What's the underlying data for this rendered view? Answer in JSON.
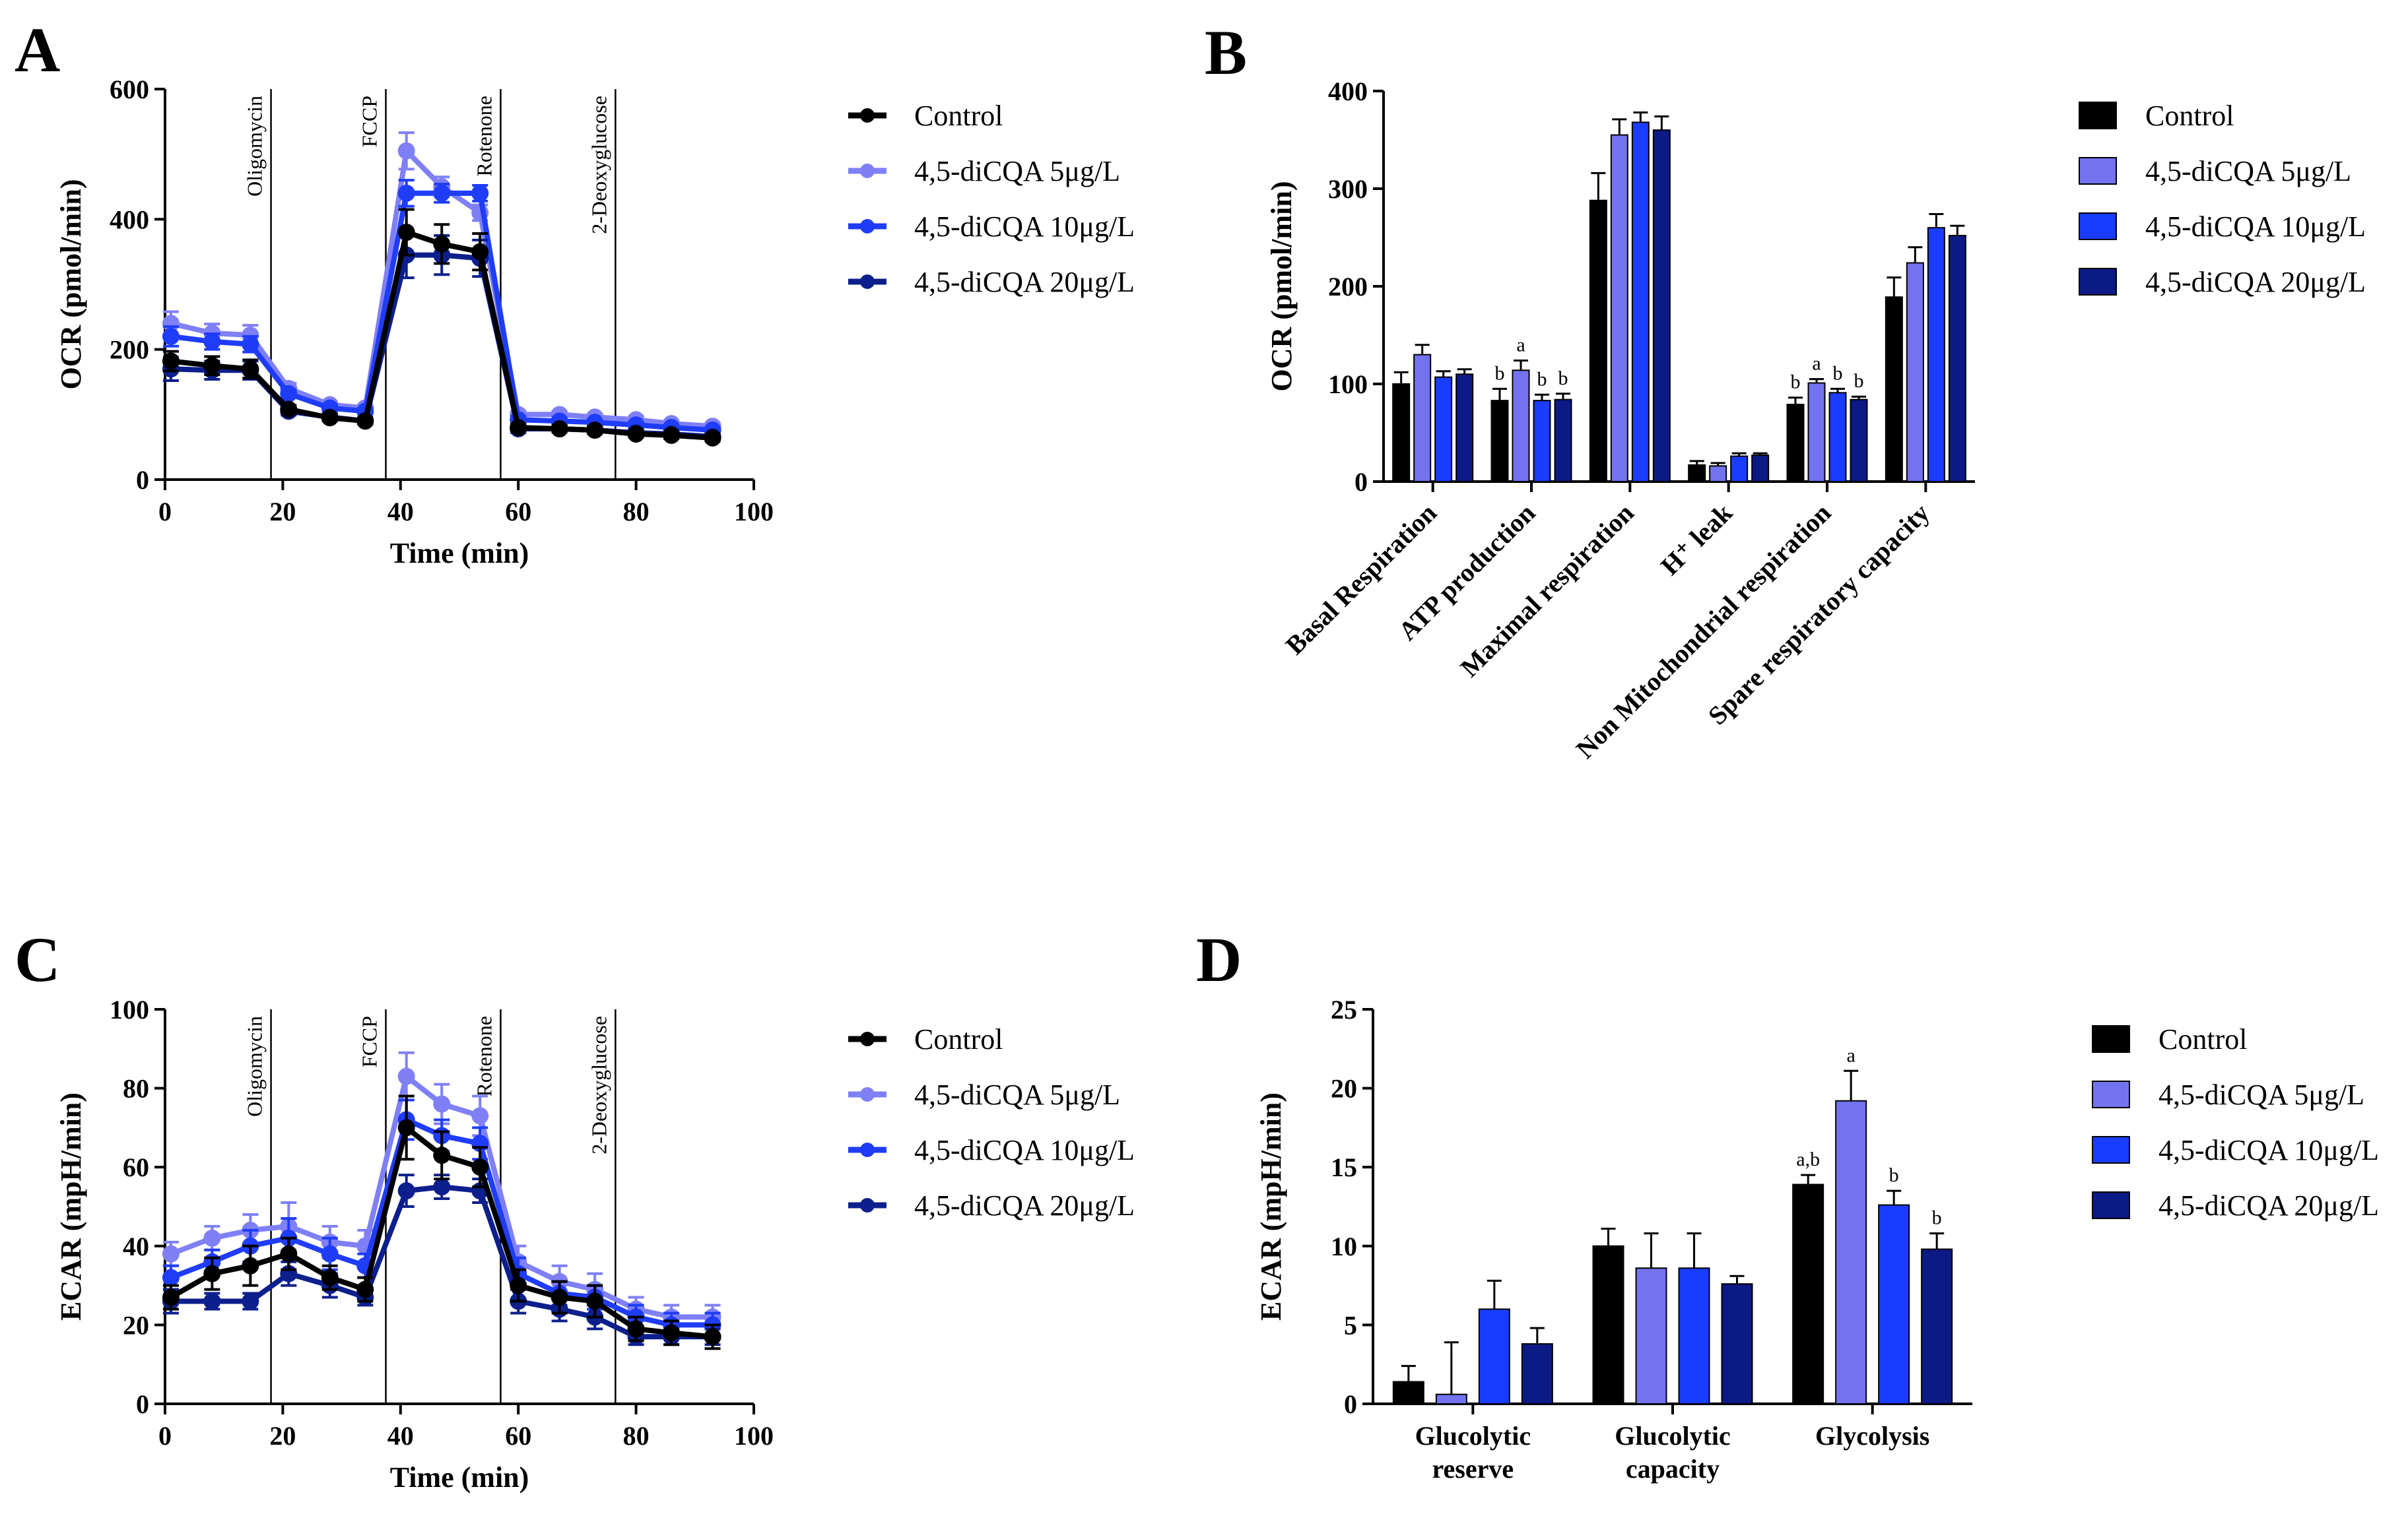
{
  "colors": {
    "Control": "#000000",
    "4,5-diCQA 5μg/L": "#7373f0",
    "4,5-diCQA 10μg/L": "#1a3cff",
    "4,5-diCQA 20μg/L": "#0c1a86",
    "line_5": "#7f80f5",
    "line_10": "#1f3df7",
    "line_20": "#0d1f8c"
  },
  "chart_data": [
    {
      "panel": "A",
      "type": "line",
      "xlabel": "Time (min)",
      "ylabel": "OCR (pmol/min)",
      "xlim": [
        0,
        100
      ],
      "ylim": [
        0,
        600
      ],
      "xticks": [
        0,
        20,
        40,
        60,
        80,
        100
      ],
      "yticks": [
        0,
        200,
        400,
        600
      ],
      "injections": [
        {
          "x": 18,
          "label": "Oligomycin"
        },
        {
          "x": 37.5,
          "label": "FCCP"
        },
        {
          "x": 57,
          "label": "Rotenone"
        },
        {
          "x": 76.5,
          "label": "2-Deoxyglucose"
        }
      ],
      "x": [
        1,
        8,
        14.5,
        21,
        28,
        34,
        41,
        47,
        53.5,
        60,
        67,
        73,
        80,
        86,
        93
      ],
      "series": [
        {
          "name": "4,5-diCQA 5μg/L",
          "values": [
            240,
            225,
            222,
            140,
            115,
            110,
            505,
            450,
            410,
            100,
            100,
            96,
            92,
            86,
            82
          ],
          "errors": [
            18,
            14,
            15,
            8,
            5,
            5,
            28,
            15,
            12,
            5,
            5,
            5,
            5,
            5,
            5
          ]
        },
        {
          "name": "4,5-diCQA 10μg/L",
          "values": [
            220,
            212,
            208,
            132,
            110,
            105,
            440,
            440,
            440,
            92,
            90,
            88,
            84,
            80,
            76
          ],
          "errors": [
            15,
            12,
            12,
            6,
            5,
            5,
            20,
            14,
            12,
            5,
            5,
            4,
            4,
            4,
            4
          ]
        },
        {
          "name": "4,5-diCQA 20μg/L",
          "values": [
            170,
            168,
            168,
            105,
            96,
            90,
            345,
            345,
            340,
            78,
            78,
            76,
            72,
            70,
            66
          ],
          "errors": [
            18,
            14,
            14,
            6,
            5,
            5,
            35,
            30,
            28,
            6,
            5,
            5,
            5,
            5,
            5
          ]
        },
        {
          "name": "Control",
          "values": [
            182,
            175,
            170,
            108,
            95,
            90,
            380,
            362,
            350,
            80,
            78,
            76,
            70,
            68,
            64
          ],
          "errors": [
            15,
            14,
            14,
            6,
            5,
            5,
            35,
            30,
            28,
            5,
            5,
            5,
            5,
            5,
            5
          ]
        }
      ]
    },
    {
      "panel": "B",
      "type": "bar",
      "ylabel": "OCR (pmol/min)",
      "ylim": [
        0,
        400
      ],
      "yticks": [
        0,
        100,
        200,
        300,
        400
      ],
      "categories": [
        "Basal Respiration",
        "ATP production",
        "Maximal respiration",
        "H⁺ leak",
        "Non Mitochondrial respiration",
        "Spare respiratory capacity"
      ],
      "series": [
        {
          "name": "Control",
          "values": [
            100,
            83,
            288,
            17,
            79,
            189
          ],
          "errors": [
            12,
            12,
            28,
            4,
            7,
            20
          ],
          "labels": [
            "",
            "b",
            "",
            "",
            "b",
            ""
          ]
        },
        {
          "name": "4,5-diCQA 5μg/L",
          "values": [
            130,
            114,
            355,
            16,
            101,
            224
          ],
          "errors": [
            10,
            10,
            16,
            3,
            4,
            16
          ],
          "labels": [
            "",
            "a",
            "",
            "",
            "a",
            ""
          ]
        },
        {
          "name": "4,5-diCQA 10μg/L",
          "values": [
            107,
            83,
            368,
            26,
            91,
            260
          ],
          "errors": [
            6,
            6,
            10,
            3,
            4,
            14
          ],
          "labels": [
            "",
            "b",
            "",
            "",
            "b",
            ""
          ]
        },
        {
          "name": "4,5-diCQA 20μg/L",
          "values": [
            110,
            84,
            360,
            27,
            84,
            252
          ],
          "errors": [
            5,
            6,
            14,
            2,
            3,
            10
          ],
          "labels": [
            "",
            "b",
            "",
            "",
            "b",
            ""
          ]
        }
      ]
    },
    {
      "panel": "C",
      "type": "line",
      "xlabel": "Time (min)",
      "ylabel": "ECAR (mpH/min)",
      "xlim": [
        0,
        100
      ],
      "ylim": [
        0,
        100
      ],
      "xticks": [
        0,
        20,
        40,
        60,
        80,
        100
      ],
      "yticks": [
        0,
        20,
        40,
        60,
        80,
        100
      ],
      "injections": [
        {
          "x": 18,
          "label": "Oligomycin"
        },
        {
          "x": 37.5,
          "label": "FCCP"
        },
        {
          "x": 57,
          "label": "Rotenone"
        },
        {
          "x": 76.5,
          "label": "2-Deoxyglucose"
        }
      ],
      "x": [
        1,
        8,
        14.5,
        21,
        28,
        34,
        41,
        47,
        53.5,
        60,
        67,
        73,
        80,
        86,
        93
      ],
      "series": [
        {
          "name": "4,5-diCQA 5μg/L",
          "values": [
            38,
            42,
            44,
            45,
            41,
            40,
            83,
            76,
            73,
            36,
            31,
            29,
            24,
            22,
            22
          ],
          "errors": [
            3,
            3,
            4,
            6,
            4,
            4,
            6,
            5,
            5,
            4,
            4,
            4,
            3,
            3,
            3
          ]
        },
        {
          "name": "4,5-diCQA 10μg/L",
          "values": [
            32,
            36,
            40,
            42,
            38,
            35,
            72,
            68,
            66,
            33,
            28,
            27,
            22,
            20,
            20
          ],
          "errors": [
            3,
            3,
            4,
            5,
            4,
            3,
            5,
            4,
            4,
            4,
            3,
            3,
            3,
            3,
            3
          ]
        },
        {
          "name": "4,5-diCQA 20μg/L",
          "values": [
            26,
            26,
            26,
            33,
            30,
            27,
            54,
            55,
            54,
            26,
            24,
            22,
            17,
            17,
            17
          ],
          "errors": [
            3,
            2,
            2,
            3,
            3,
            2,
            4,
            3,
            3,
            3,
            3,
            3,
            2,
            2,
            2
          ]
        },
        {
          "name": "Control",
          "values": [
            27,
            33,
            35,
            38,
            32,
            29,
            70,
            63,
            60,
            30,
            27,
            26,
            19,
            18,
            17
          ],
          "errors": [
            3,
            4,
            5,
            4,
            3,
            3,
            8,
            6,
            5,
            4,
            4,
            4,
            3,
            3,
            3
          ]
        }
      ]
    },
    {
      "panel": "D",
      "type": "bar",
      "ylabel": "ECAR (mpH/min)",
      "ylim": [
        0,
        25
      ],
      "yticks": [
        0,
        5,
        10,
        15,
        20,
        25
      ],
      "categories": [
        "Glucolytic reserve",
        "Glucolytic capacity",
        "Glycolysis"
      ],
      "category_lines": [
        [
          "Glucolytic",
          "reserve"
        ],
        [
          "Glucolytic",
          "capacity"
        ],
        [
          "Glycolysis"
        ]
      ],
      "series": [
        {
          "name": "Control",
          "values": [
            1.4,
            10.0,
            13.9
          ],
          "errors": [
            1.0,
            1.1,
            0.6
          ],
          "labels": [
            "",
            "",
            "a,b"
          ]
        },
        {
          "name": "4,5-diCQA 5μg/L",
          "values": [
            0.6,
            8.6,
            19.2
          ],
          "errors": [
            3.3,
            2.2,
            1.9
          ],
          "labels": [
            "",
            "",
            "a"
          ]
        },
        {
          "name": "4,5-diCQA 10μg/L",
          "values": [
            6.0,
            8.6,
            12.6
          ],
          "errors": [
            1.8,
            2.2,
            0.9
          ],
          "labels": [
            "",
            "",
            "b"
          ]
        },
        {
          "name": "4,5-diCQA 20μg/L",
          "values": [
            3.8,
            7.6,
            9.8
          ],
          "errors": [
            1.0,
            0.5,
            1.0
          ],
          "labels": [
            "",
            "",
            "b"
          ]
        }
      ]
    }
  ],
  "legend": [
    "Control",
    "4,5-diCQA 5μg/L",
    "4,5-diCQA 10μg/L",
    "4,5-diCQA 20μg/L"
  ]
}
